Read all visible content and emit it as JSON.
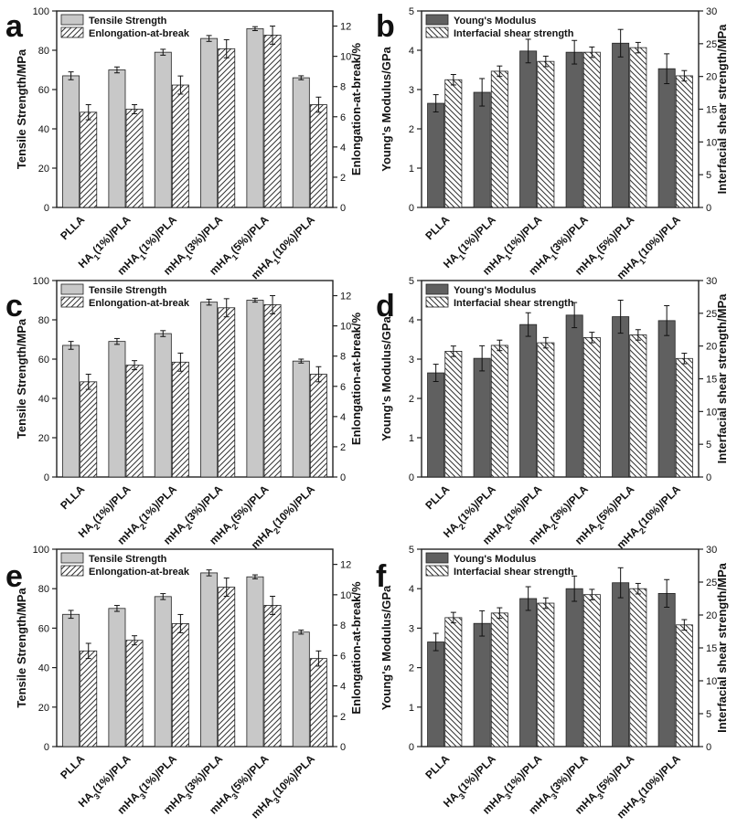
{
  "chart_data": [
    {
      "panel": "a",
      "type": "bar",
      "ylabel": "Tensile Strength/MPa",
      "ylabel_right": "Enlongation-at-break/%",
      "ylim": [
        0,
        100
      ],
      "yticks": [
        0,
        20,
        40,
        60,
        80,
        100
      ],
      "ylim_right": [
        0,
        13
      ],
      "yticks_right": [
        0,
        2,
        4,
        6,
        8,
        10,
        12
      ],
      "categories": [
        {
          "base": "PLLA",
          "sub": "",
          "mid": "",
          "sub2": "",
          "tail": ""
        },
        {
          "base": "HA",
          "sub": "1",
          "mid": "(1%)/PLA",
          "sub2": "",
          "tail": ""
        },
        {
          "base": "mHA",
          "sub": "1",
          "mid": "(1%)/PLA",
          "sub2": "",
          "tail": ""
        },
        {
          "base": "mHA",
          "sub": "1",
          "mid": "(3%)/PLA",
          "sub2": "",
          "tail": ""
        },
        {
          "base": "mHA",
          "sub": "1",
          "mid": "(5%)/PLA",
          "sub2": "",
          "tail": ""
        },
        {
          "base": "mHA",
          "sub": "1",
          "mid": "(10%)/PLA",
          "sub2": "",
          "tail": ""
        }
      ],
      "series": [
        {
          "name": "Tensile Strength",
          "axis": "left",
          "style": "solid",
          "values": [
            67,
            70,
            79,
            86,
            91,
            66
          ],
          "errors": [
            2,
            1.5,
            1.5,
            1.5,
            1,
            1
          ]
        },
        {
          "name": "Enlongation-at-break",
          "axis": "right",
          "style": "hatch-right",
          "values": [
            6.3,
            6.5,
            8.1,
            10.5,
            11.4,
            6.8
          ],
          "errors": [
            0.5,
            0.3,
            0.6,
            0.6,
            0.6,
            0.5
          ]
        }
      ]
    },
    {
      "panel": "b",
      "type": "bar",
      "ylabel": "Young's Modulus/GPa",
      "ylabel_right": "Interfacial shear strength/MPa",
      "ylim": [
        0,
        5
      ],
      "yticks": [
        0,
        1,
        2,
        3,
        4,
        5
      ],
      "ylim_right": [
        0,
        30
      ],
      "yticks_right": [
        0,
        5,
        10,
        15,
        20,
        25,
        30
      ],
      "categories": [
        {
          "base": "PLLA",
          "sub": "",
          "mid": "",
          "sub2": "",
          "tail": ""
        },
        {
          "base": "HA",
          "sub": "1",
          "mid": "(1%)/PLA",
          "sub2": "",
          "tail": ""
        },
        {
          "base": "mHA",
          "sub": "1",
          "mid": "(1%)/PLA",
          "sub2": "",
          "tail": ""
        },
        {
          "base": "mHA",
          "sub": "1",
          "mid": "(3%)/PLA",
          "sub2": "",
          "tail": ""
        },
        {
          "base": "mHA",
          "sub": "1",
          "mid": "(5%)/PLA",
          "sub2": "",
          "tail": ""
        },
        {
          "base": "mHA",
          "sub": "1",
          "mid": "(10%)/PLA",
          "sub2": "",
          "tail": ""
        }
      ],
      "series": [
        {
          "name": "Young's Modulus",
          "axis": "left",
          "style": "dark",
          "values": [
            2.65,
            2.93,
            3.98,
            3.95,
            4.18,
            3.53
          ],
          "errors": [
            0.22,
            0.35,
            0.3,
            0.3,
            0.35,
            0.38
          ]
        },
        {
          "name": "Interfacial shear strength",
          "axis": "right",
          "style": "hatch-left",
          "values": [
            19.5,
            20.8,
            22.3,
            23.7,
            24.4,
            20.1
          ],
          "errors": [
            0.8,
            0.8,
            0.8,
            0.8,
            0.8,
            0.8
          ]
        }
      ]
    },
    {
      "panel": "c",
      "type": "bar",
      "ylabel": "Tensile Strength/MPa",
      "ylabel_right": "Enlongation-at-break/%",
      "ylim": [
        0,
        100
      ],
      "yticks": [
        0,
        20,
        40,
        60,
        80,
        100
      ],
      "ylim_right": [
        0,
        13
      ],
      "yticks_right": [
        0,
        2,
        4,
        6,
        8,
        10,
        12
      ],
      "categories": [
        {
          "base": "PLLA",
          "sub": "",
          "mid": "",
          "sub2": "",
          "tail": ""
        },
        {
          "base": "HA",
          "sub": "2",
          "mid": "(1%)/PLA",
          "sub2": "",
          "tail": ""
        },
        {
          "base": "mHA",
          "sub": "2",
          "mid": "(1%)/PLA",
          "sub2": "",
          "tail": ""
        },
        {
          "base": "mHA",
          "sub": "2",
          "mid": "(3%)/PLA",
          "sub2": "",
          "tail": ""
        },
        {
          "base": "mHA",
          "sub": "2",
          "mid": "(5%)/PLA",
          "sub2": "",
          "tail": ""
        },
        {
          "base": "mHA",
          "sub": "2",
          "mid": "(10%)/PLA",
          "sub2": "",
          "tail": ""
        }
      ],
      "series": [
        {
          "name": "Tensile Strength",
          "axis": "left",
          "style": "solid",
          "values": [
            67,
            69,
            73,
            89,
            90,
            59
          ],
          "errors": [
            2,
            1.5,
            1.5,
            1.5,
            1,
            1
          ]
        },
        {
          "name": "Enlongation-at-break",
          "axis": "right",
          "style": "hatch-right",
          "values": [
            6.3,
            7.4,
            7.6,
            11.2,
            11.4,
            6.8
          ],
          "errors": [
            0.5,
            0.3,
            0.6,
            0.6,
            0.6,
            0.5
          ]
        }
      ]
    },
    {
      "panel": "d",
      "type": "bar",
      "ylabel": "Young's Modulus/GPa",
      "ylabel_right": "Interfacial shear strength/MPa",
      "ylim": [
        0,
        5
      ],
      "yticks": [
        0,
        1,
        2,
        3,
        4,
        5
      ],
      "ylim_right": [
        0,
        30
      ],
      "yticks_right": [
        0,
        5,
        10,
        15,
        20,
        25,
        30
      ],
      "categories": [
        {
          "base": "PLLA",
          "sub": "",
          "mid": "",
          "sub2": "",
          "tail": ""
        },
        {
          "base": "HA",
          "sub": "2",
          "mid": "(1%)/PLA",
          "sub2": "",
          "tail": ""
        },
        {
          "base": "mHA",
          "sub": "2",
          "mid": "(1%)/PLA",
          "sub2": "",
          "tail": ""
        },
        {
          "base": "mHA",
          "sub": "2",
          "mid": "(3%)/PLA",
          "sub2": "",
          "tail": ""
        },
        {
          "base": "mHA",
          "sub": "2",
          "mid": "(5%)/PLA",
          "sub2": "",
          "tail": ""
        },
        {
          "base": "mHA",
          "sub": "2",
          "mid": "(10%)/PLA",
          "sub2": "",
          "tail": ""
        }
      ],
      "series": [
        {
          "name": "Young's Modulus",
          "axis": "left",
          "style": "dark",
          "values": [
            2.65,
            3.02,
            3.88,
            4.12,
            4.08,
            3.98
          ],
          "errors": [
            0.22,
            0.32,
            0.3,
            0.32,
            0.42,
            0.38
          ]
        },
        {
          "name": "Interfacial shear strength",
          "axis": "right",
          "style": "hatch-left",
          "values": [
            19.2,
            20.1,
            20.5,
            21.3,
            21.7,
            18.1
          ],
          "errors": [
            0.8,
            0.8,
            0.8,
            0.8,
            0.8,
            0.8
          ]
        }
      ]
    },
    {
      "panel": "e",
      "type": "bar",
      "ylabel": "Tensile Strength/MPa",
      "ylabel_right": "Enlongation-at-break/%",
      "ylim": [
        0,
        100
      ],
      "yticks": [
        0,
        20,
        40,
        60,
        80,
        100
      ],
      "ylim_right": [
        0,
        13
      ],
      "yticks_right": [
        0,
        2,
        4,
        6,
        8,
        10,
        12
      ],
      "categories": [
        {
          "base": "PLLA",
          "sub": "",
          "mid": "",
          "sub2": "",
          "tail": ""
        },
        {
          "base": "HA",
          "sub": "3",
          "mid": "(1%)/PLA",
          "sub2": "",
          "tail": ""
        },
        {
          "base": "mHA",
          "sub": "3",
          "mid": "(1%)/PLA",
          "sub2": "",
          "tail": ""
        },
        {
          "base": "mHA",
          "sub": "3",
          "mid": "(3%)/PLA",
          "sub2": "",
          "tail": ""
        },
        {
          "base": "mHA",
          "sub": "3",
          "mid": "(5%)/PLA",
          "sub2": "",
          "tail": ""
        },
        {
          "base": "mHA",
          "sub": "3",
          "mid": "(10%)/PLA",
          "sub2": "",
          "tail": ""
        }
      ],
      "series": [
        {
          "name": "Tensile Strength",
          "axis": "left",
          "style": "solid",
          "values": [
            67,
            70,
            76,
            88,
            86,
            58
          ],
          "errors": [
            2,
            1.5,
            1.5,
            1.5,
            1,
            1
          ]
        },
        {
          "name": "Enlongation-at-break",
          "axis": "right",
          "style": "hatch-right",
          "values": [
            6.3,
            7.0,
            8.1,
            10.5,
            9.3,
            5.8
          ],
          "errors": [
            0.5,
            0.3,
            0.6,
            0.6,
            0.6,
            0.5
          ]
        }
      ]
    },
    {
      "panel": "f",
      "type": "bar",
      "ylabel": "Young's Modulus/GPa",
      "ylabel_right": "Interfacial shear strength/MPa",
      "ylim": [
        0,
        5
      ],
      "yticks": [
        0,
        1,
        2,
        3,
        4,
        5
      ],
      "ylim_right": [
        0,
        30
      ],
      "yticks_right": [
        0,
        5,
        10,
        15,
        20,
        25,
        30
      ],
      "categories": [
        {
          "base": "PLLA",
          "sub": "",
          "mid": "",
          "sub2": "",
          "tail": ""
        },
        {
          "base": "HA",
          "sub": "3",
          "mid": "(1%)/PLA",
          "sub2": "",
          "tail": ""
        },
        {
          "base": "mHA",
          "sub": "3",
          "mid": "(1%)/PLA",
          "sub2": "",
          "tail": ""
        },
        {
          "base": "mHA",
          "sub": "3",
          "mid": "(3%)/PLA",
          "sub2": "",
          "tail": ""
        },
        {
          "base": "mHA",
          "sub": "3",
          "mid": "(5%)/PLA",
          "sub2": "",
          "tail": ""
        },
        {
          "base": "mHA",
          "sub": "3",
          "mid": "(10%)/PLA",
          "sub2": "",
          "tail": ""
        }
      ],
      "series": [
        {
          "name": "Young's Modulus",
          "axis": "left",
          "style": "dark",
          "values": [
            2.65,
            3.12,
            3.75,
            4.0,
            4.15,
            3.88
          ],
          "errors": [
            0.22,
            0.32,
            0.3,
            0.32,
            0.38,
            0.35
          ]
        },
        {
          "name": "Interfacial shear strength",
          "axis": "right",
          "style": "hatch-left",
          "values": [
            19.6,
            20.3,
            21.8,
            23.1,
            24.0,
            18.5
          ],
          "errors": [
            0.8,
            0.8,
            0.8,
            0.8,
            0.8,
            0.8
          ]
        }
      ]
    }
  ],
  "colors": {
    "light_bar": "#c8c8c8",
    "dark_bar": "#606060",
    "axis": "#222222",
    "background": "#ffffff"
  }
}
